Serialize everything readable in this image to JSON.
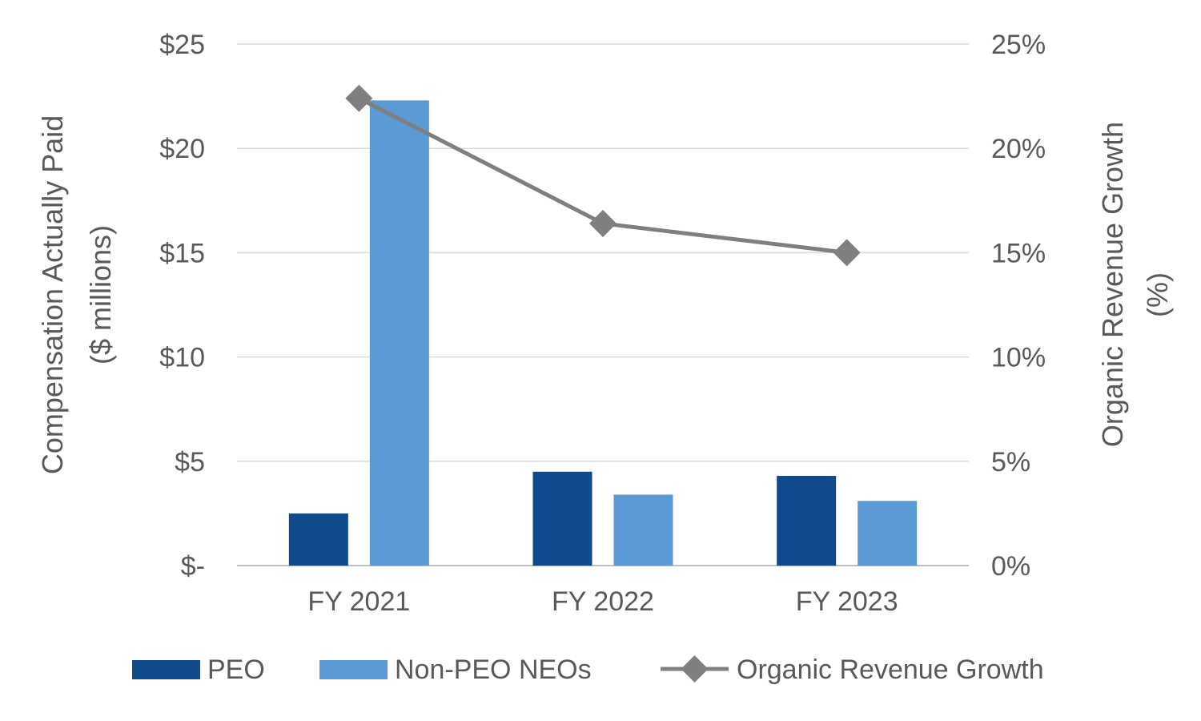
{
  "colors": {
    "peo": "#0f4a8c",
    "non_peo": "#5b9bd5",
    "line": "#7f7f7f",
    "grid": "#d9d9d9",
    "text": "#595959"
  },
  "chart_data": {
    "type": "bar",
    "categories": [
      "FY 2021",
      "FY 2022",
      "FY 2023"
    ],
    "series": [
      {
        "name": "PEO",
        "axis": "left",
        "kind": "bar",
        "values": [
          2.5,
          4.5,
          4.3
        ]
      },
      {
        "name": "Non-PEO NEOs",
        "axis": "left",
        "kind": "bar",
        "values": [
          22.3,
          3.4,
          3.1
        ]
      },
      {
        "name": "Organic Revenue Growth",
        "axis": "right",
        "kind": "line",
        "marker": "diamond",
        "values": [
          22.4,
          16.4,
          15.0
        ]
      }
    ],
    "left_axis": {
      "label_line1": "Compensation Actually Paid",
      "label_line2": "($ millions)",
      "ylim": [
        0,
        25
      ],
      "ticks": [
        0,
        5,
        10,
        15,
        20,
        25
      ],
      "tick_labels": [
        "$-",
        "$5",
        "$10",
        "$15",
        "$20",
        "$25"
      ]
    },
    "right_axis": {
      "label_line1": "Organic Revenue Growth",
      "label_line2": "(%)",
      "ylim": [
        0,
        25
      ],
      "ticks": [
        0,
        5,
        10,
        15,
        20,
        25
      ],
      "tick_labels": [
        "0%",
        "5%",
        "10%",
        "15%",
        "20%",
        "25%"
      ]
    },
    "grid": true,
    "legend_position": "bottom"
  }
}
